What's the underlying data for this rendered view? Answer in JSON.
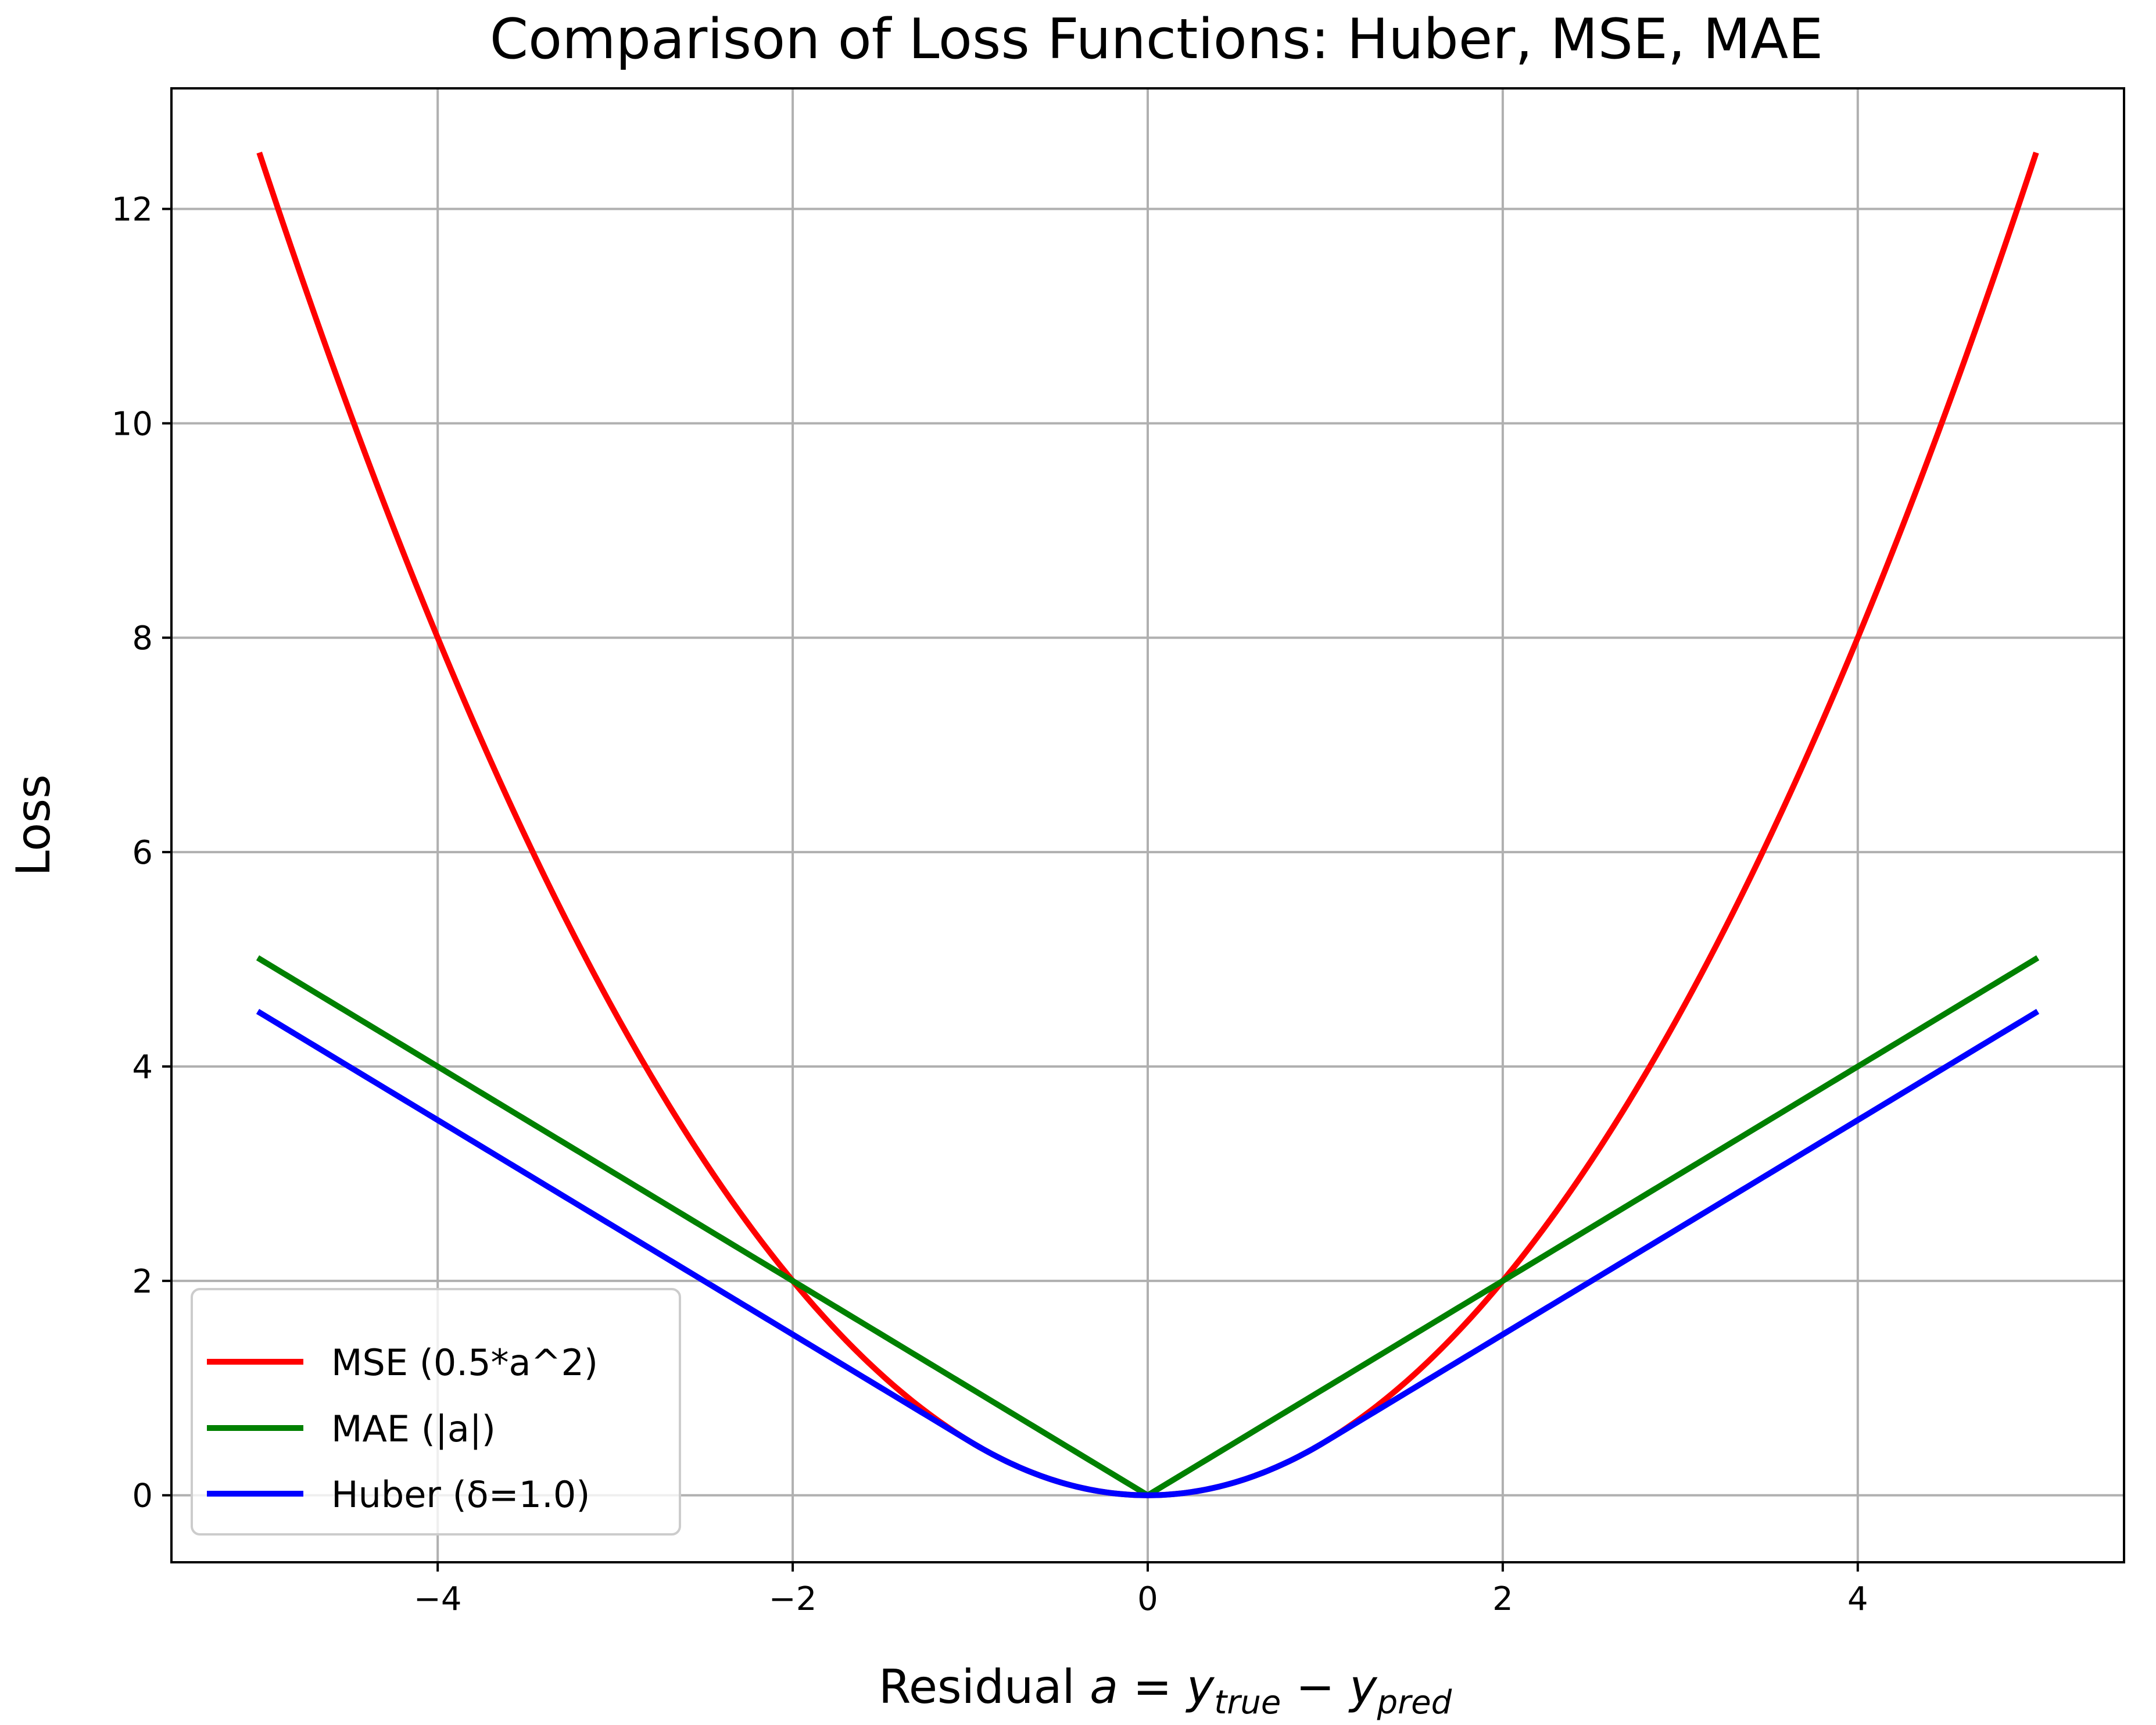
{
  "chart_data": {
    "type": "line",
    "title": "Comparison of Loss Functions: Huber, MSE, MAE",
    "xlabel": {
      "prefix": "Residual ",
      "var": "a",
      "eq": " = ",
      "y1": "y",
      "sub1": "true",
      "minus": " − ",
      "y2": "y",
      "sub2": "pred"
    },
    "ylabel": "Loss",
    "xlim": [
      -5.5,
      5.5
    ],
    "ylim": [
      -0.625,
      13.125
    ],
    "xticks": [
      -4,
      -2,
      0,
      2,
      4
    ],
    "xtick_labels": [
      "−4",
      "−2",
      "0",
      "2",
      "4"
    ],
    "yticks": [
      0,
      2,
      4,
      6,
      8,
      10,
      12
    ],
    "ytick_labels": [
      "0",
      "2",
      "4",
      "6",
      "8",
      "10",
      "12"
    ],
    "grid": true,
    "legend_position": "lower-left",
    "x_range": [
      -5,
      5
    ],
    "series": [
      {
        "name": "MSE (0.5*a^2)",
        "color": "#ff0000",
        "function": "mse",
        "formula": "0.5*a^2"
      },
      {
        "name": "MAE (|a|)",
        "color": "#008000",
        "function": "mae",
        "formula": "|a|"
      },
      {
        "name": "Huber (δ=1.0)",
        "color": "#0000ff",
        "function": "huber",
        "delta": 1.0
      }
    ]
  }
}
